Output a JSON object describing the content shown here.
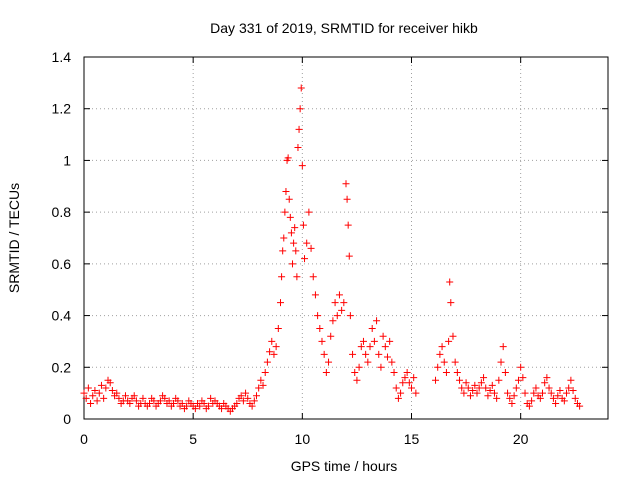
{
  "chart_data": {
    "type": "scatter",
    "title": "Day 331 of 2019, SRMTID for receiver hikb",
    "xlabel": "GPS time / hours",
    "ylabel": "SRMTID / TECUs",
    "xlim": [
      0,
      24
    ],
    "ylim": [
      0,
      1.4
    ],
    "xticks": [
      0,
      5,
      10,
      15,
      20
    ],
    "xtick_labels": [
      "0",
      "5",
      "10",
      "15",
      "20"
    ],
    "yticks": [
      0,
      0.2,
      0.4,
      0.6,
      0.8,
      1.0,
      1.2,
      1.4
    ],
    "ytick_labels": [
      "0",
      "0.2",
      "0.4",
      "0.6",
      "0.8",
      "1",
      "1.2",
      "1.4"
    ],
    "grid": true,
    "marker": "+",
    "color": "#ff0000",
    "series": [
      {
        "name": "SRMTID",
        "points": [
          [
            0.0,
            0.1
          ],
          [
            0.1,
            0.08
          ],
          [
            0.2,
            0.12
          ],
          [
            0.3,
            0.06
          ],
          [
            0.4,
            0.09
          ],
          [
            0.5,
            0.11
          ],
          [
            0.6,
            0.07
          ],
          [
            0.7,
            0.1
          ],
          [
            0.8,
            0.13
          ],
          [
            0.9,
            0.08
          ],
          [
            1.0,
            0.12
          ],
          [
            1.1,
            0.15
          ],
          [
            1.2,
            0.14
          ],
          [
            1.3,
            0.11
          ],
          [
            1.4,
            0.09
          ],
          [
            1.5,
            0.1
          ],
          [
            1.6,
            0.08
          ],
          [
            1.7,
            0.06
          ],
          [
            1.8,
            0.07
          ],
          [
            1.9,
            0.09
          ],
          [
            2.0,
            0.07
          ],
          [
            2.1,
            0.06
          ],
          [
            2.2,
            0.08
          ],
          [
            2.3,
            0.09
          ],
          [
            2.4,
            0.07
          ],
          [
            2.5,
            0.05
          ],
          [
            2.6,
            0.06
          ],
          [
            2.7,
            0.08
          ],
          [
            2.8,
            0.06
          ],
          [
            2.9,
            0.05
          ],
          [
            3.0,
            0.06
          ],
          [
            3.1,
            0.08
          ],
          [
            3.2,
            0.07
          ],
          [
            3.3,
            0.05
          ],
          [
            3.4,
            0.06
          ],
          [
            3.5,
            0.07
          ],
          [
            3.6,
            0.09
          ],
          [
            3.7,
            0.08
          ],
          [
            3.8,
            0.06
          ],
          [
            3.9,
            0.07
          ],
          [
            4.0,
            0.05
          ],
          [
            4.1,
            0.06
          ],
          [
            4.2,
            0.08
          ],
          [
            4.3,
            0.07
          ],
          [
            4.4,
            0.05
          ],
          [
            4.5,
            0.06
          ],
          [
            4.6,
            0.04
          ],
          [
            4.7,
            0.05
          ],
          [
            4.8,
            0.07
          ],
          [
            4.9,
            0.06
          ],
          [
            5.0,
            0.05
          ],
          [
            5.1,
            0.04
          ],
          [
            5.2,
            0.06
          ],
          [
            5.3,
            0.05
          ],
          [
            5.4,
            0.07
          ],
          [
            5.5,
            0.06
          ],
          [
            5.6,
            0.04
          ],
          [
            5.7,
            0.05
          ],
          [
            5.8,
            0.08
          ],
          [
            5.9,
            0.06
          ],
          [
            6.0,
            0.07
          ],
          [
            6.1,
            0.06
          ],
          [
            6.2,
            0.05
          ],
          [
            6.3,
            0.04
          ],
          [
            6.4,
            0.06
          ],
          [
            6.5,
            0.05
          ],
          [
            6.6,
            0.04
          ],
          [
            6.7,
            0.03
          ],
          [
            6.8,
            0.04
          ],
          [
            6.9,
            0.05
          ],
          [
            7.0,
            0.06
          ],
          [
            7.1,
            0.08
          ],
          [
            7.2,
            0.09
          ],
          [
            7.3,
            0.07
          ],
          [
            7.4,
            0.1
          ],
          [
            7.5,
            0.08
          ],
          [
            7.6,
            0.06
          ],
          [
            7.7,
            0.05
          ],
          [
            7.8,
            0.07
          ],
          [
            7.9,
            0.09
          ],
          [
            8.0,
            0.12
          ],
          [
            8.1,
            0.15
          ],
          [
            8.2,
            0.13
          ],
          [
            8.3,
            0.18
          ],
          [
            8.4,
            0.22
          ],
          [
            8.5,
            0.26
          ],
          [
            8.6,
            0.3
          ],
          [
            8.7,
            0.25
          ],
          [
            8.8,
            0.28
          ],
          [
            8.9,
            0.35
          ],
          [
            9.0,
            0.45
          ],
          [
            9.05,
            0.55
          ],
          [
            9.1,
            0.65
          ],
          [
            9.15,
            0.7
          ],
          [
            9.2,
            0.8
          ],
          [
            9.25,
            0.88
          ],
          [
            9.3,
            1.0
          ],
          [
            9.35,
            1.01
          ],
          [
            9.4,
            0.85
          ],
          [
            9.45,
            0.78
          ],
          [
            9.5,
            0.72
          ],
          [
            9.55,
            0.6
          ],
          [
            9.6,
            0.68
          ],
          [
            9.65,
            0.74
          ],
          [
            9.7,
            0.65
          ],
          [
            9.75,
            0.55
          ],
          [
            9.8,
            1.05
          ],
          [
            9.85,
            1.12
          ],
          [
            9.9,
            1.2
          ],
          [
            9.95,
            1.28
          ],
          [
            10.0,
            0.98
          ],
          [
            10.05,
            0.75
          ],
          [
            10.1,
            0.62
          ],
          [
            10.2,
            0.68
          ],
          [
            10.3,
            0.8
          ],
          [
            10.4,
            0.66
          ],
          [
            10.5,
            0.55
          ],
          [
            10.6,
            0.48
          ],
          [
            10.7,
            0.4
          ],
          [
            10.8,
            0.35
          ],
          [
            10.9,
            0.3
          ],
          [
            11.0,
            0.25
          ],
          [
            11.1,
            0.18
          ],
          [
            11.2,
            0.22
          ],
          [
            11.3,
            0.32
          ],
          [
            11.4,
            0.38
          ],
          [
            11.5,
            0.45
          ],
          [
            11.6,
            0.4
          ],
          [
            11.7,
            0.48
          ],
          [
            11.8,
            0.42
          ],
          [
            11.9,
            0.45
          ],
          [
            12.0,
            0.91
          ],
          [
            12.05,
            0.85
          ],
          [
            12.1,
            0.75
          ],
          [
            12.15,
            0.63
          ],
          [
            12.2,
            0.4
          ],
          [
            12.3,
            0.25
          ],
          [
            12.4,
            0.18
          ],
          [
            12.5,
            0.15
          ],
          [
            12.6,
            0.2
          ],
          [
            12.7,
            0.28
          ],
          [
            12.8,
            0.3
          ],
          [
            12.9,
            0.25
          ],
          [
            13.0,
            0.22
          ],
          [
            13.1,
            0.28
          ],
          [
            13.2,
            0.35
          ],
          [
            13.3,
            0.3
          ],
          [
            13.4,
            0.38
          ],
          [
            13.5,
            0.25
          ],
          [
            13.6,
            0.2
          ],
          [
            13.7,
            0.32
          ],
          [
            13.8,
            0.28
          ],
          [
            13.9,
            0.24
          ],
          [
            14.0,
            0.3
          ],
          [
            14.1,
            0.22
          ],
          [
            14.2,
            0.18
          ],
          [
            14.3,
            0.12
          ],
          [
            14.4,
            0.08
          ],
          [
            14.5,
            0.1
          ],
          [
            14.6,
            0.14
          ],
          [
            14.7,
            0.16
          ],
          [
            14.8,
            0.18
          ],
          [
            14.9,
            0.14
          ],
          [
            15.0,
            0.12
          ],
          [
            15.1,
            0.16
          ],
          [
            15.2,
            0.1
          ],
          [
            16.1,
            0.15
          ],
          [
            16.2,
            0.2
          ],
          [
            16.3,
            0.25
          ],
          [
            16.4,
            0.28
          ],
          [
            16.5,
            0.22
          ],
          [
            16.6,
            0.18
          ],
          [
            16.7,
            0.3
          ],
          [
            16.75,
            0.53
          ],
          [
            16.8,
            0.45
          ],
          [
            16.9,
            0.32
          ],
          [
            17.0,
            0.22
          ],
          [
            17.1,
            0.18
          ],
          [
            17.2,
            0.15
          ],
          [
            17.3,
            0.12
          ],
          [
            17.4,
            0.1
          ],
          [
            17.5,
            0.14
          ],
          [
            17.6,
            0.12
          ],
          [
            17.7,
            0.09
          ],
          [
            17.8,
            0.11
          ],
          [
            17.9,
            0.13
          ],
          [
            18.0,
            0.1
          ],
          [
            18.1,
            0.12
          ],
          [
            18.2,
            0.14
          ],
          [
            18.3,
            0.16
          ],
          [
            18.4,
            0.12
          ],
          [
            18.5,
            0.09
          ],
          [
            18.6,
            0.11
          ],
          [
            18.7,
            0.13
          ],
          [
            18.8,
            0.1
          ],
          [
            18.9,
            0.08
          ],
          [
            19.0,
            0.15
          ],
          [
            19.1,
            0.22
          ],
          [
            19.2,
            0.28
          ],
          [
            19.3,
            0.18
          ],
          [
            19.4,
            0.1
          ],
          [
            19.5,
            0.08
          ],
          [
            19.6,
            0.06
          ],
          [
            19.7,
            0.09
          ],
          [
            19.8,
            0.12
          ],
          [
            19.9,
            0.15
          ],
          [
            20.0,
            0.2
          ],
          [
            20.1,
            0.16
          ],
          [
            20.2,
            0.1
          ],
          [
            20.3,
            0.06
          ],
          [
            20.4,
            0.05
          ],
          [
            20.5,
            0.07
          ],
          [
            20.6,
            0.1
          ],
          [
            20.7,
            0.12
          ],
          [
            20.8,
            0.09
          ],
          [
            20.9,
            0.08
          ],
          [
            21.0,
            0.1
          ],
          [
            21.1,
            0.14
          ],
          [
            21.2,
            0.16
          ],
          [
            21.3,
            0.12
          ],
          [
            21.4,
            0.1
          ],
          [
            21.5,
            0.08
          ],
          [
            21.6,
            0.06
          ],
          [
            21.7,
            0.09
          ],
          [
            21.8,
            0.11
          ],
          [
            21.9,
            0.08
          ],
          [
            22.0,
            0.07
          ],
          [
            22.1,
            0.1
          ],
          [
            22.2,
            0.12
          ],
          [
            22.3,
            0.15
          ],
          [
            22.4,
            0.11
          ],
          [
            22.5,
            0.08
          ],
          [
            22.6,
            0.06
          ],
          [
            22.7,
            0.05
          ]
        ]
      }
    ]
  }
}
